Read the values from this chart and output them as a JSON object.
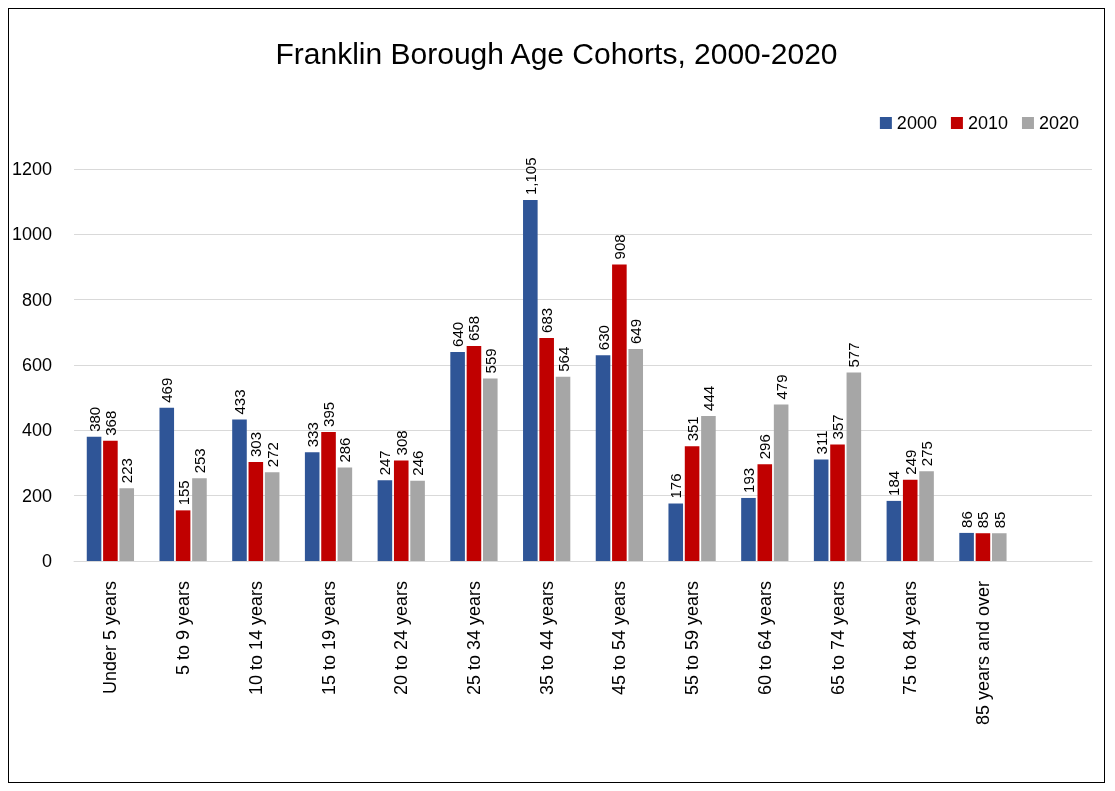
{
  "chart_data": {
    "type": "bar",
    "title": "Franklin Borough Age Cohorts, 2000-2020",
    "categories": [
      "Under 5 years",
      "5 to 9 years",
      "10 to 14 years",
      "15 to 19 years",
      "20 to 24 years",
      "25 to 34 years",
      "35 to 44 years",
      "45 to 54 years",
      "55 to 59 years",
      "60 to 64 years",
      "65 to 74 years",
      "75 to 84 years",
      "85 years and over",
      null
    ],
    "series": [
      {
        "name": "2000",
        "color": "#2f5597",
        "values": [
          380,
          469,
          433,
          333,
          247,
          640,
          1105,
          630,
          176,
          193,
          311,
          184,
          86,
          null
        ],
        "value_labels": [
          "380",
          "469",
          "433",
          "333",
          "247",
          "640",
          "1,105",
          "630",
          "176",
          "193",
          "311",
          "184",
          "86",
          null
        ]
      },
      {
        "name": "2010",
        "color": "#c00000",
        "values": [
          368,
          155,
          303,
          395,
          308,
          658,
          683,
          908,
          351,
          296,
          357,
          249,
          85,
          null
        ],
        "value_labels": [
          "368",
          "155",
          "303",
          "395",
          "308",
          "658",
          "683",
          "908",
          "351",
          "296",
          "357",
          "249",
          "85",
          null
        ]
      },
      {
        "name": "2020",
        "color": "#a6a6a6",
        "values": [
          223,
          253,
          272,
          286,
          246,
          559,
          564,
          649,
          444,
          479,
          577,
          275,
          85,
          null
        ],
        "value_labels": [
          "223",
          "253",
          "272",
          "286",
          "246",
          "559",
          "564",
          "649",
          "444",
          "479",
          "577",
          "275",
          "85",
          null
        ]
      }
    ],
    "ylim": [
      0,
      1200
    ],
    "yticks": [
      0,
      200,
      400,
      600,
      800,
      1000,
      1200
    ],
    "grid": "y",
    "legend": "top right"
  }
}
